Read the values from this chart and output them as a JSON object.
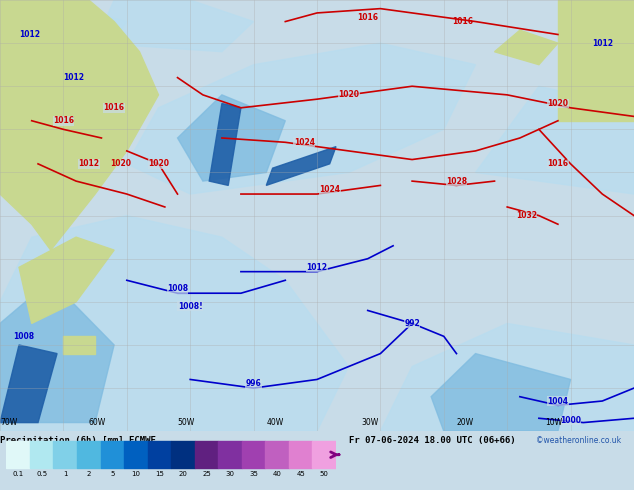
{
  "title_left": "Precipitation (6h) [mm] ECMWF",
  "title_right": "Fr 07-06-2024 18.00 UTC (06+66)",
  "credit": "©weatheronline.co.uk",
  "colorbar_values": [
    0.1,
    0.5,
    1,
    2,
    5,
    10,
    15,
    20,
    25,
    30,
    35,
    40,
    45,
    50
  ],
  "colorbar_colors": [
    "#e0f8f8",
    "#b0e8f0",
    "#80d0e8",
    "#50b8e0",
    "#2090d8",
    "#0060c0",
    "#0040a0",
    "#003080",
    "#602080",
    "#8030a0",
    "#a040b0",
    "#c060c0",
    "#e080d0",
    "#f0a0e0"
  ],
  "background_color": "#d0dde8",
  "land_color": "#c8d890",
  "grid_color": "#aaaaaa",
  "map_bg": "#c8dce8",
  "fig_width": 6.34,
  "fig_height": 4.9,
  "dpi": 100
}
